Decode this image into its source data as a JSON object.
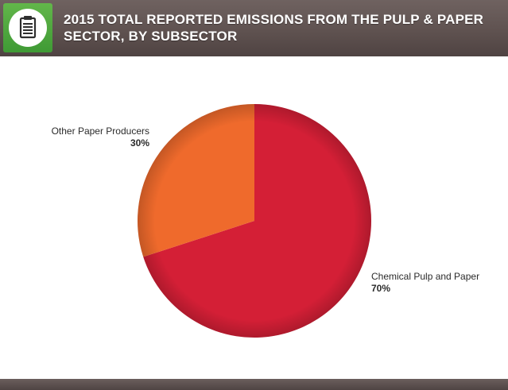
{
  "header": {
    "title_line1": "2015 TOTAL REPORTED EMISSIONS FROM THE PULP & PAPER",
    "title_line2": "SECTOR, BY SUBSECTOR",
    "icon": "clipboard-icon"
  },
  "colors": {
    "header_bg": "#5f5250",
    "icon_bg": "#4fa83f",
    "slice_chemical": "#d41f36",
    "slice_other": "#ef6a2c"
  },
  "chart_data": {
    "type": "pie",
    "title": "2015 TOTAL REPORTED EMISSIONS FROM THE PULP & PAPER SECTOR, BY SUBSECTOR",
    "categories": [
      "Chemical Pulp and Paper",
      "Other Paper Producers"
    ],
    "values": [
      70,
      30
    ],
    "labels": [
      "70%",
      "30%"
    ],
    "colors": [
      "#d41f36",
      "#ef6a2c"
    ],
    "start": "12 o'clock",
    "direction": "clockwise"
  }
}
